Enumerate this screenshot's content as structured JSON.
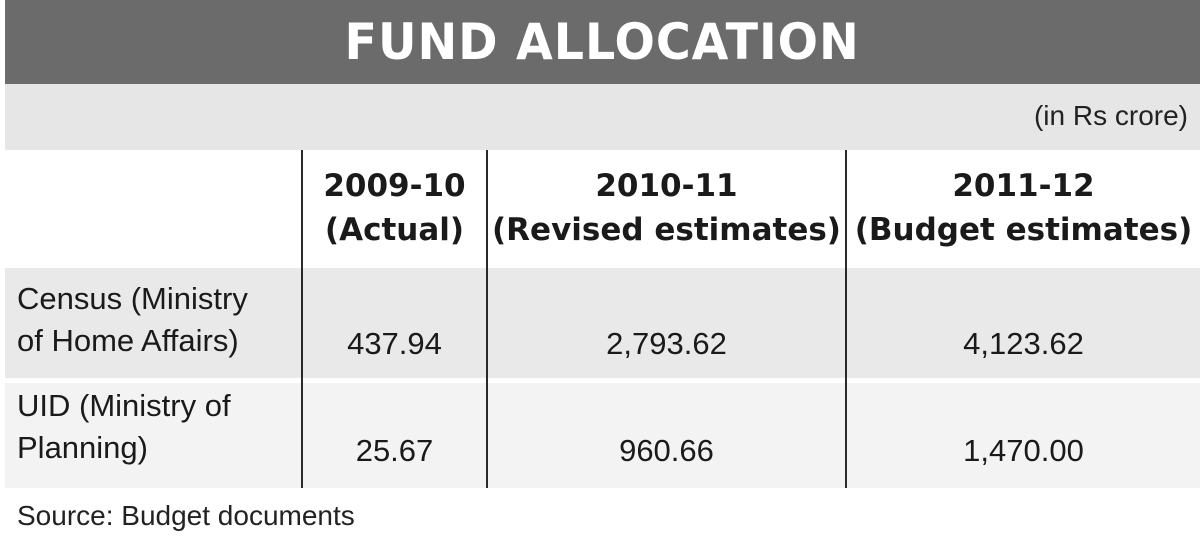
{
  "title": "FUND ALLOCATION",
  "unit_note": "(in Rs crore)",
  "columns": [
    {
      "line1": "2009-10",
      "line2": "(Actual)"
    },
    {
      "line1": "2010-11",
      "line2": "(Revised estimates)"
    },
    {
      "line1": "2011-12",
      "line2": "(Budget estimates)"
    }
  ],
  "rows": [
    {
      "label_line1": "Census (Ministry",
      "label_line2": "of Home Affairs)",
      "values": [
        "437.94",
        "2,793.62",
        "4,123.62"
      ]
    },
    {
      "label_line1": "UID (Ministry of",
      "label_line2": "Planning)",
      "values": [
        "25.67",
        "960.66",
        "1,470.00"
      ]
    }
  ],
  "source": "Source: Budget documents",
  "colors": {
    "header_bg": "#6b6b6b",
    "header_text": "#ffffff",
    "band_bg": "#e6e6e6"
  }
}
